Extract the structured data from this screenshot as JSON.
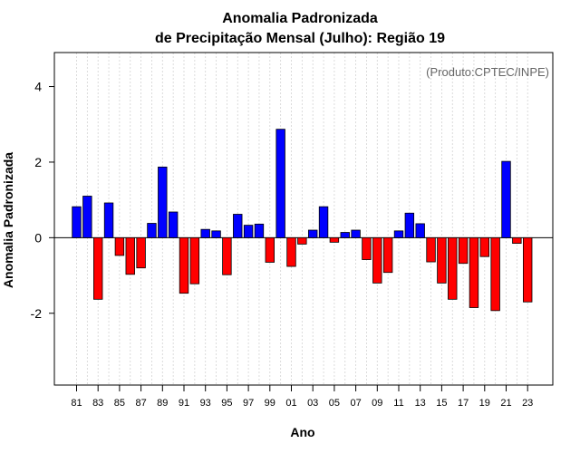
{
  "chart_data": {
    "type": "bar",
    "title_line1": "Anomalia Padronizada",
    "title_line2": "de Precipitação Mensal (Julho): Região 19",
    "xlabel": "Ano",
    "ylabel": "Anomalia Padronizada",
    "annotation": "(Produto:CPTEC/INPE)",
    "ylim": [
      -3.9,
      4.9
    ],
    "yticks": [
      -2,
      0,
      2,
      4
    ],
    "ytick_labels": [
      "-2",
      "0",
      "2",
      "4"
    ],
    "categories": [
      "1981",
      "1982",
      "1983",
      "1984",
      "1985",
      "1986",
      "1987",
      "1988",
      "1989",
      "1990",
      "1991",
      "1992",
      "1993",
      "1994",
      "1995",
      "1996",
      "1997",
      "1998",
      "1999",
      "2000",
      "2001",
      "2002",
      "2003",
      "2004",
      "2005",
      "2006",
      "2007",
      "2008",
      "2009",
      "2010",
      "2011",
      "2012",
      "2013",
      "2014",
      "2015",
      "2016",
      "2017",
      "2018",
      "2019",
      "2020",
      "2021",
      "2022",
      "2023"
    ],
    "xtick_labels": [
      "81",
      "83",
      "85",
      "87",
      "89",
      "91",
      "93",
      "95",
      "97",
      "99",
      "01",
      "03",
      "05",
      "07",
      "09",
      "11",
      "13",
      "15",
      "17",
      "19",
      "21",
      "23"
    ],
    "values": [
      0.82,
      1.1,
      -1.63,
      0.92,
      -0.47,
      -0.97,
      -0.8,
      0.38,
      1.87,
      0.68,
      -1.47,
      -1.22,
      0.22,
      0.18,
      -0.98,
      0.62,
      0.33,
      0.36,
      -0.65,
      2.87,
      -0.76,
      -0.17,
      0.2,
      0.82,
      -0.12,
      0.14,
      0.2,
      -0.58,
      -1.2,
      -0.92,
      0.18,
      0.65,
      0.37,
      -0.64,
      -1.2,
      -1.63,
      -0.68,
      -1.85,
      -0.5,
      -1.93,
      2.02,
      -0.15,
      -1.7
    ],
    "colors": {
      "positive": "#0000FF",
      "negative": "#FF0000",
      "grid": "#d3d3d3"
    }
  }
}
